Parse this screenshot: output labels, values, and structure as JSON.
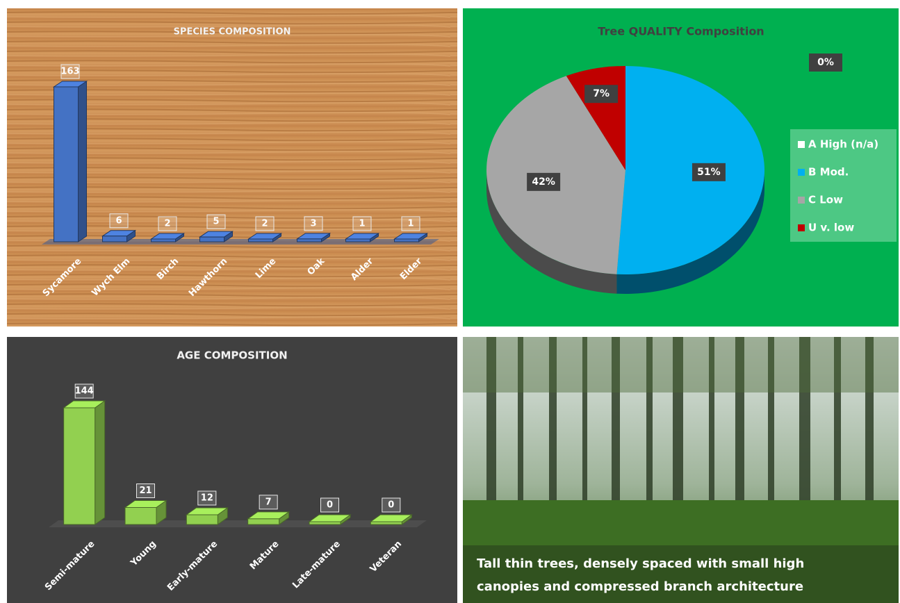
{
  "chart_data": [
    {
      "type": "bar",
      "title": "SPECIES COMPOSITION",
      "categories": [
        "Sycamore",
        "Wych Elm",
        "Birch",
        "Hawthorn",
        "Lime",
        "Oak",
        "Alder",
        "Elder"
      ],
      "values": [
        163,
        6,
        2,
        5,
        2,
        3,
        1,
        1
      ],
      "color": "#4472c4"
    },
    {
      "type": "pie",
      "title": "Tree QUALITY Composition",
      "categories": [
        "A High (n/a)",
        "B Mod.",
        "C Low",
        "U v. low"
      ],
      "values": [
        0,
        51,
        42,
        7
      ],
      "value_labels": [
        "0%",
        "51%",
        "42%",
        "7%"
      ],
      "colors": [
        "#ffffff",
        "#00b0f0",
        "#a6a6a6",
        "#c00000"
      ],
      "legend": "right"
    },
    {
      "type": "bar",
      "title": "AGE COMPOSITION",
      "categories": [
        "Semi-mature",
        "Young",
        "Early-mature",
        "Mature",
        "Late-mature",
        "Veteran"
      ],
      "values": [
        144,
        21,
        12,
        7,
        0,
        0
      ],
      "color": "#92d050"
    }
  ],
  "caption": [
    "Tall thin trees, densely spaced with small high",
    "canopies and compressed branch architecture"
  ]
}
